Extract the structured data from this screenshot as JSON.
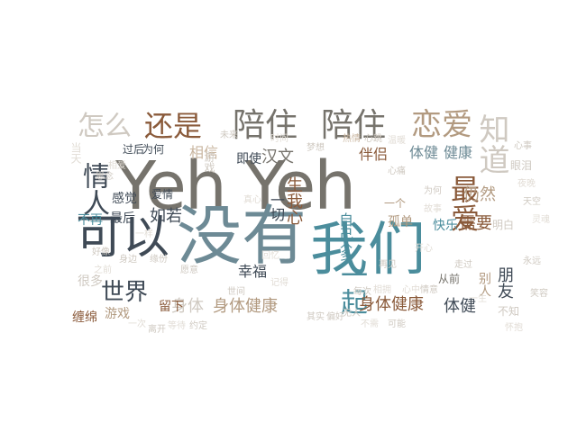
{
  "palette": {
    "gray": "#76736c",
    "teal": "#4b8d9c",
    "brown": "#8a5a3a",
    "tan": "#b29a80",
    "dark": "#3f4a56",
    "light": "#cfc9c1",
    "pale": "#e2ddd6",
    "slate": "#6d8a95",
    "beige": "#c9b6a0"
  },
  "words": [
    {
      "text": "Yeh Yeh",
      "color": "gray"
    },
    {
      "text": "没有",
      "color": "slate"
    },
    {
      "text": "我们",
      "color": "teal"
    },
    {
      "text": "可以",
      "color": "dark"
    },
    {
      "text": "陪住",
      "color": "gray"
    },
    {
      "text": "陪住",
      "color": "gray"
    },
    {
      "text": "还是",
      "color": "brown"
    },
    {
      "text": "怎么",
      "color": "light"
    },
    {
      "text": "恋爱",
      "color": "tan"
    },
    {
      "text": "知道",
      "color": "light"
    },
    {
      "text": "最爱",
      "color": "brown"
    },
    {
      "text": "情人",
      "color": "dark"
    },
    {
      "text": "世界",
      "color": "dark"
    },
    {
      "text": "一起",
      "color": "teal"
    },
    {
      "text": "身体健康",
      "color": "brown"
    },
    {
      "text": "身体健康",
      "color": "tan"
    },
    {
      "text": "身体",
      "color": "light"
    },
    {
      "text": "体健",
      "color": "dark"
    },
    {
      "text": "体健",
      "color": "slate"
    },
    {
      "text": "健康",
      "color": "slate"
    },
    {
      "text": "朋友",
      "color": "dark"
    },
    {
      "text": "别人",
      "color": "tan"
    },
    {
      "text": "需要",
      "color": "brown"
    },
    {
      "text": "仍然",
      "color": "tan"
    },
    {
      "text": "伴侣",
      "color": "brown"
    },
    {
      "text": "相信",
      "color": "beige"
    },
    {
      "text": "即使",
      "color": "dark"
    },
    {
      "text": "汉文",
      "color": "gray"
    },
    {
      "text": "生我心",
      "color": "brown"
    },
    {
      "text": "一切",
      "color": "dark"
    },
    {
      "text": "幸福",
      "color": "dark"
    },
    {
      "text": "自己",
      "color": "teal"
    },
    {
      "text": "太多",
      "color": "teal"
    },
    {
      "text": "孤单",
      "color": "tan"
    },
    {
      "text": "快乐",
      "color": "teal"
    },
    {
      "text": "如若",
      "color": "dark"
    },
    {
      "text": "感觉",
      "color": "dark"
    },
    {
      "text": "最后",
      "color": "dark"
    },
    {
      "text": "不再",
      "color": "teal"
    },
    {
      "text": "爱情",
      "color": "dark"
    },
    {
      "text": "留下",
      "color": "brown"
    },
    {
      "text": "缠绵",
      "color": "brown"
    },
    {
      "text": "游戏",
      "color": "tan"
    },
    {
      "text": "很多",
      "color": "light"
    },
    {
      "text": "过后",
      "color": "dark"
    },
    {
      "text": "为何",
      "color": "dark"
    },
    {
      "text": "游戏",
      "color": "light"
    },
    {
      "text": "眼泪",
      "color": "light"
    },
    {
      "text": "明白",
      "color": "light"
    },
    {
      "text": "从前",
      "color": "gray"
    },
    {
      "text": "不知",
      "color": "light"
    },
    {
      "text": "当天",
      "color": "pale"
    },
    {
      "text": "热情",
      "color": "beige"
    },
    {
      "text": "心跳",
      "color": "light"
    },
    {
      "text": "温暖",
      "color": "pale"
    },
    {
      "text": "天空",
      "color": "light"
    },
    {
      "text": "一个",
      "color": "tan"
    },
    {
      "text": "为何",
      "color": "light"
    },
    {
      "text": "愿意",
      "color": "light"
    },
    {
      "text": "之前",
      "color": "pale"
    },
    {
      "text": "记得",
      "color": "pale"
    },
    {
      "text": "其实",
      "color": "light"
    },
    {
      "text": "偏好",
      "color": "light"
    },
    {
      "text": "再见",
      "color": "light"
    },
    {
      "text": "开心",
      "color": "pale"
    },
    {
      "text": "永远",
      "color": "light"
    },
    {
      "text": "相爱",
      "color": "pale"
    },
    {
      "text": "思念",
      "color": "light"
    },
    {
      "text": "未来",
      "color": "light"
    },
    {
      "text": "时间",
      "color": "pale"
    },
    {
      "text": "梦想",
      "color": "light"
    },
    {
      "text": "心痛",
      "color": "light"
    },
    {
      "text": "真心",
      "color": "pale"
    },
    {
      "text": "无人",
      "color": "light"
    },
    {
      "text": "每次",
      "color": "light"
    },
    {
      "text": "相拥",
      "color": "pale"
    },
    {
      "text": "心事",
      "color": "light"
    },
    {
      "text": "夜晚",
      "color": "pale"
    },
    {
      "text": "缘份",
      "color": "light"
    },
    {
      "text": "故事",
      "color": "pale"
    },
    {
      "text": "走过",
      "color": "light"
    },
    {
      "text": "回忆",
      "color": "pale"
    },
    {
      "text": "好像",
      "color": "light"
    },
    {
      "text": "一样",
      "color": "pale"
    },
    {
      "text": "世间",
      "color": "light"
    },
    {
      "text": "心中",
      "color": "pale"
    },
    {
      "text": "情意",
      "color": "light"
    },
    {
      "text": "一生",
      "color": "pale"
    },
    {
      "text": "身边",
      "color": "light"
    },
    {
      "text": "一次",
      "color": "pale"
    },
    {
      "text": "离开",
      "color": "light"
    },
    {
      "text": "等待",
      "color": "pale"
    },
    {
      "text": "约定",
      "color": "light"
    },
    {
      "text": "不需",
      "color": "pale"
    },
    {
      "text": "可能",
      "color": "light"
    },
    {
      "text": "灵魂",
      "color": "pale"
    },
    {
      "text": "笑容",
      "color": "light"
    },
    {
      "text": "怀抱",
      "color": "pale"
    }
  ]
}
